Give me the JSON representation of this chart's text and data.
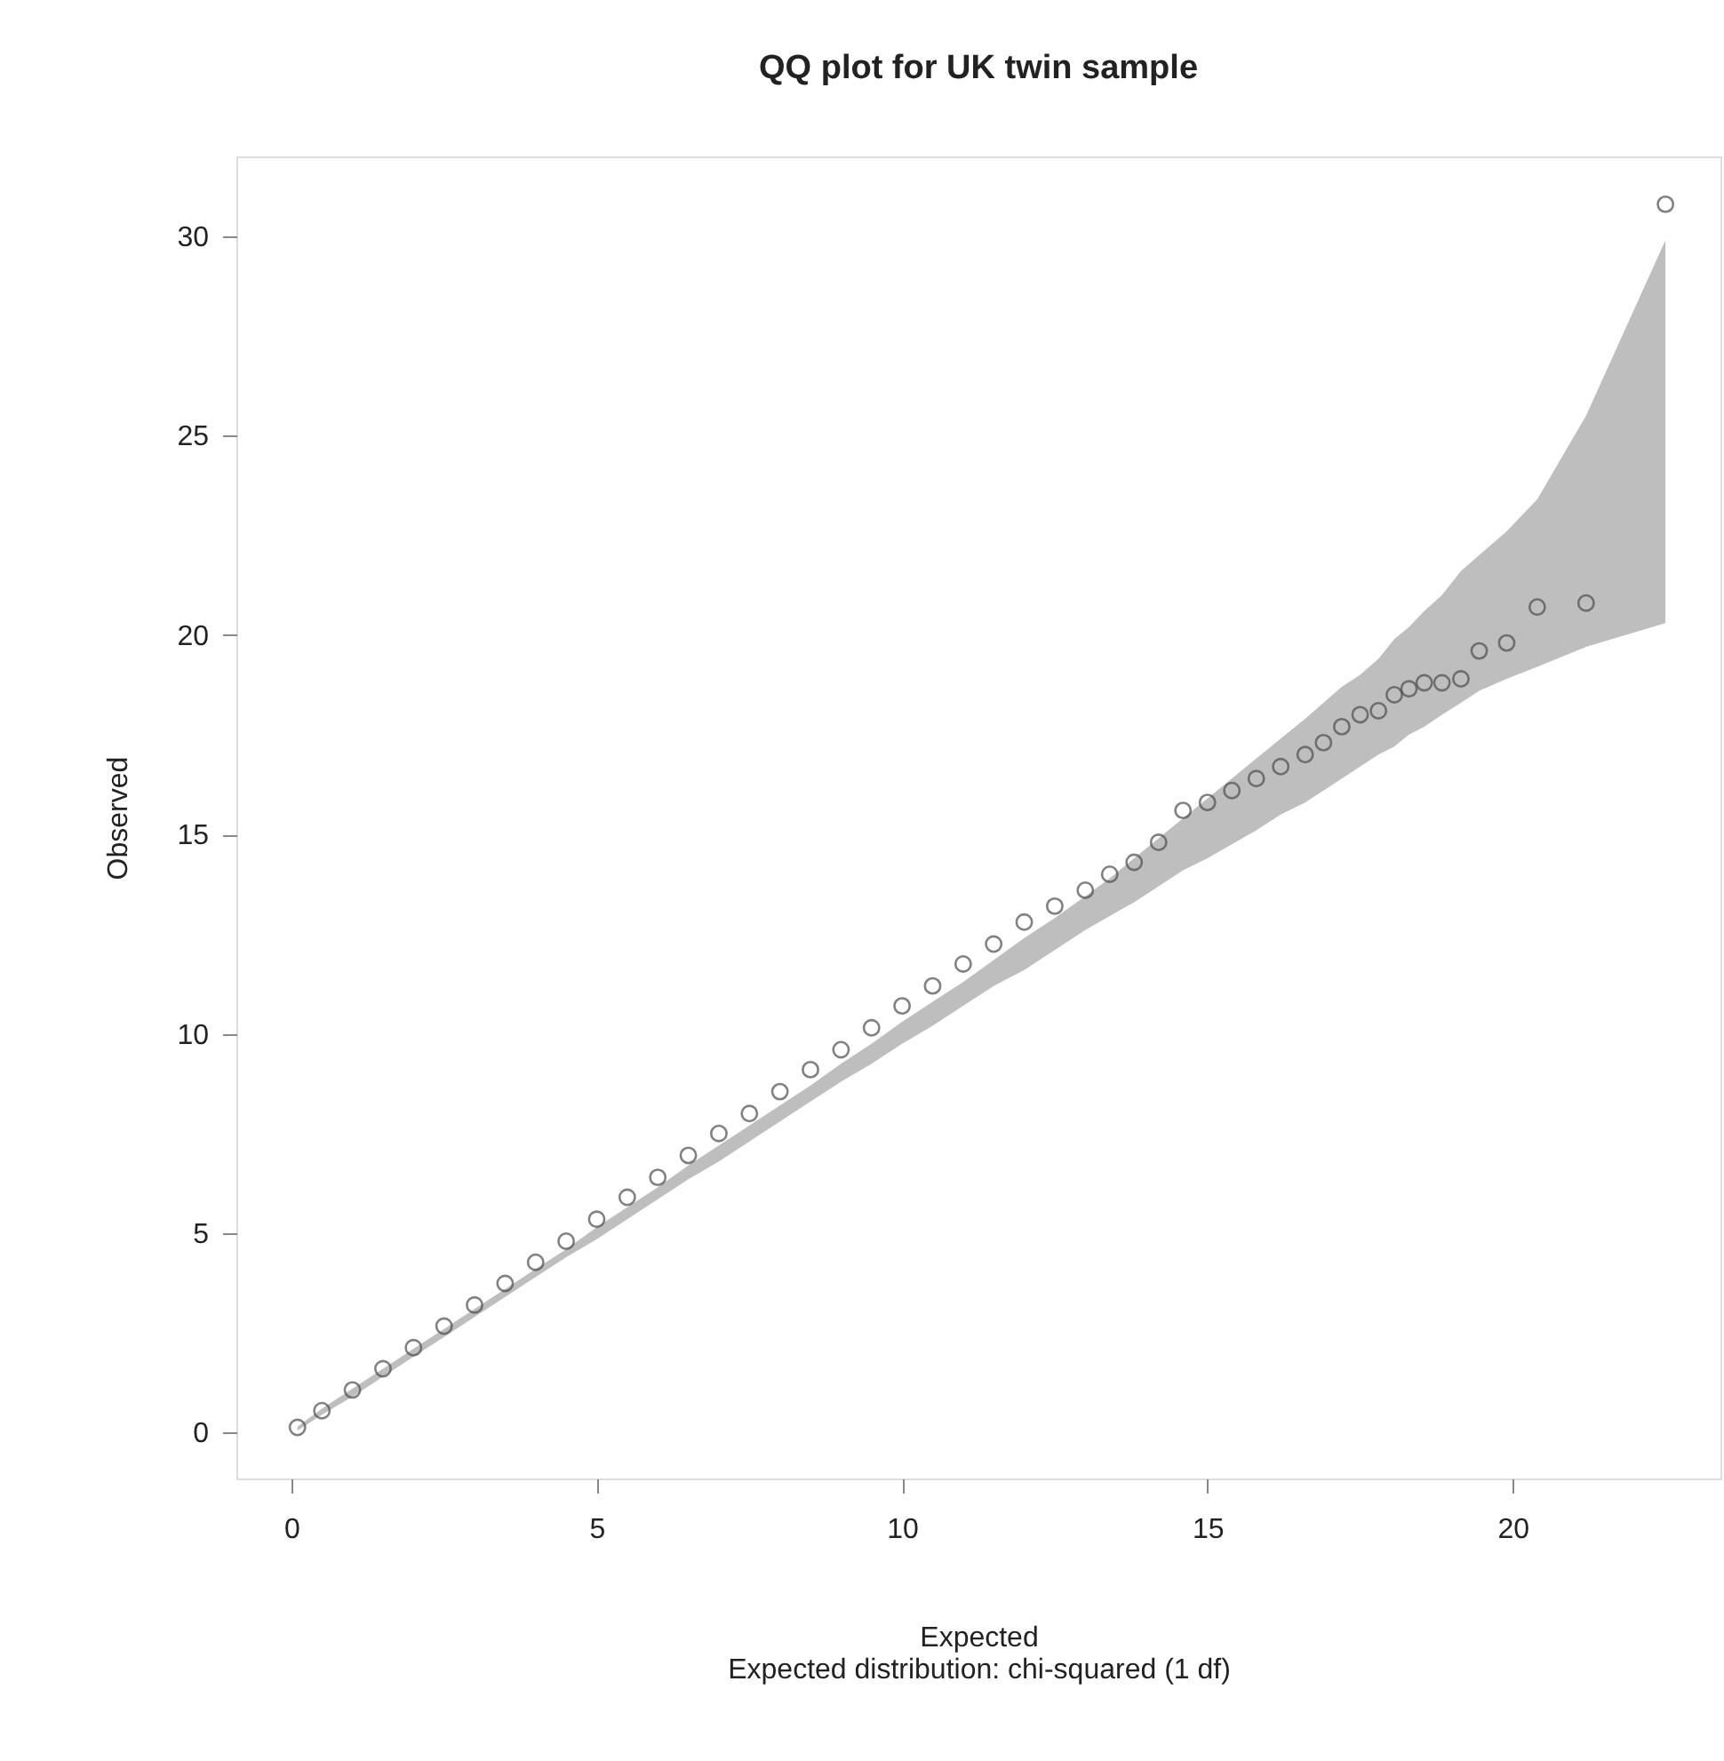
{
  "chart_data": {
    "type": "scatter",
    "title": "QQ plot for UK twin sample",
    "xlabel": "Expected",
    "ylabel": "Observed",
    "annotations": [
      "Expected distribution: chi-squared (1 df)"
    ],
    "xlim": [
      -0.9,
      23.4
    ],
    "ylim": [
      -1.15,
      32.0
    ],
    "xticks": [
      0,
      5,
      10,
      15,
      20
    ],
    "yticks": [
      0,
      5,
      10,
      15,
      20,
      25,
      30
    ],
    "grid": false,
    "marker": "circle",
    "series": [
      {
        "color": "#4d4d4d",
        "x": [
          0.1,
          0.5,
          1,
          1.5,
          2,
          2.5,
          3,
          3.5,
          4,
          4.5,
          5,
          5.5,
          6,
          6.5,
          7,
          7.5,
          8,
          8.5,
          9,
          9.5,
          10,
          10.5,
          11,
          11.5,
          12,
          12.5,
          13,
          13.4,
          13.8,
          14.2,
          14.6,
          15,
          15.4,
          15.8,
          16.2,
          16.6,
          16.9,
          17.2,
          17.5,
          17.8,
          18.06,
          18.3,
          18.55,
          18.84,
          19.15,
          19.45,
          19.9,
          20.4,
          21.2,
          22.5
        ],
        "values": [
          0.13,
          0.55,
          1.07,
          1.6,
          2.13,
          2.67,
          3.2,
          3.74,
          4.27,
          4.8,
          5.35,
          5.9,
          6.4,
          6.95,
          7.5,
          8.0,
          8.55,
          9.1,
          9.6,
          10.15,
          10.7,
          11.2,
          11.75,
          12.25,
          12.8,
          13.2,
          13.6,
          14.0,
          14.3,
          14.8,
          15.6,
          15.8,
          16.1,
          16.4,
          16.7,
          17.0,
          17.3,
          17.7,
          18.0,
          18.1,
          18.5,
          18.65,
          18.8,
          18.8,
          18.9,
          19.6,
          19.8,
          20.7,
          20.8,
          30.8
        ],
        "lower": [
          0.05,
          0.45,
          0.9,
          1.4,
          1.9,
          2.4,
          2.9,
          3.4,
          3.9,
          4.4,
          4.85,
          5.35,
          5.85,
          6.35,
          6.8,
          7.3,
          7.8,
          8.3,
          8.8,
          9.25,
          9.75,
          10.2,
          10.7,
          11.2,
          11.6,
          12.1,
          12.6,
          12.95,
          13.3,
          13.7,
          14.1,
          14.4,
          14.75,
          15.1,
          15.5,
          15.8,
          16.1,
          16.4,
          16.7,
          17.0,
          17.2,
          17.5,
          17.7,
          18.0,
          18.3,
          18.6,
          18.9,
          19.2,
          19.7,
          20.3
        ],
        "upper": [
          0.15,
          0.6,
          1.1,
          1.6,
          2.1,
          2.6,
          3.1,
          3.6,
          4.1,
          4.6,
          5.15,
          5.65,
          6.15,
          6.7,
          7.2,
          7.7,
          8.2,
          8.7,
          9.25,
          9.75,
          10.3,
          10.8,
          11.3,
          11.85,
          12.4,
          12.9,
          13.45,
          13.9,
          14.4,
          14.9,
          15.4,
          15.9,
          16.4,
          16.9,
          17.4,
          17.9,
          18.3,
          18.7,
          19.0,
          19.4,
          19.9,
          20.2,
          20.6,
          21.0,
          21.6,
          22.0,
          22.6,
          23.4,
          25.5,
          29.9
        ]
      }
    ]
  }
}
